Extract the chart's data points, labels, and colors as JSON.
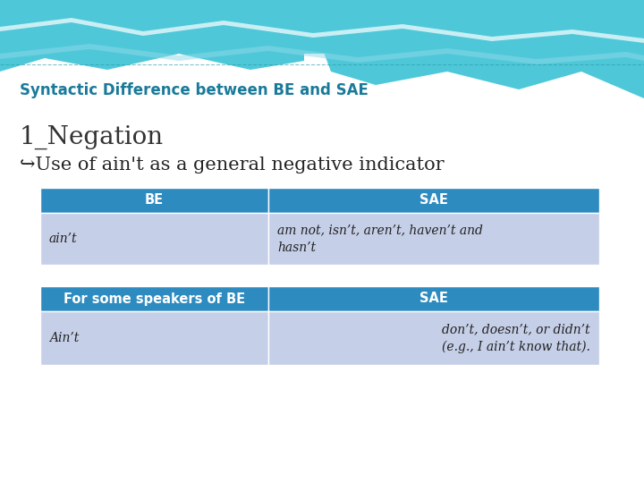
{
  "title": "Syntactic Difference between BE and SAE",
  "title_color": "#1a7a9a",
  "heading": "1_Negation",
  "subheading": "↪Use of ain't as a general negative indicator",
  "table1_header": [
    "BE",
    "SAE"
  ],
  "table1_row": [
    "ain’t",
    "am not, isn’t, aren’t, haven’t and\nhasn’t"
  ],
  "table2_header": [
    "For some speakers of BE",
    "SAE"
  ],
  "table2_row": [
    "Ain’t",
    "don’t, doesn’t, or didn’t\n(e.g., I ain’t know that)."
  ],
  "header_bg": "#2e8bc0",
  "header_text_color": "#ffffff",
  "row_bg": "#c5cfe8",
  "row_text_color": "#222222",
  "background_color": "#f0f8ff",
  "wave_teal": "#4ec8d8",
  "wave_light": "#8ed8e8",
  "wave_white": "#c8eef5"
}
